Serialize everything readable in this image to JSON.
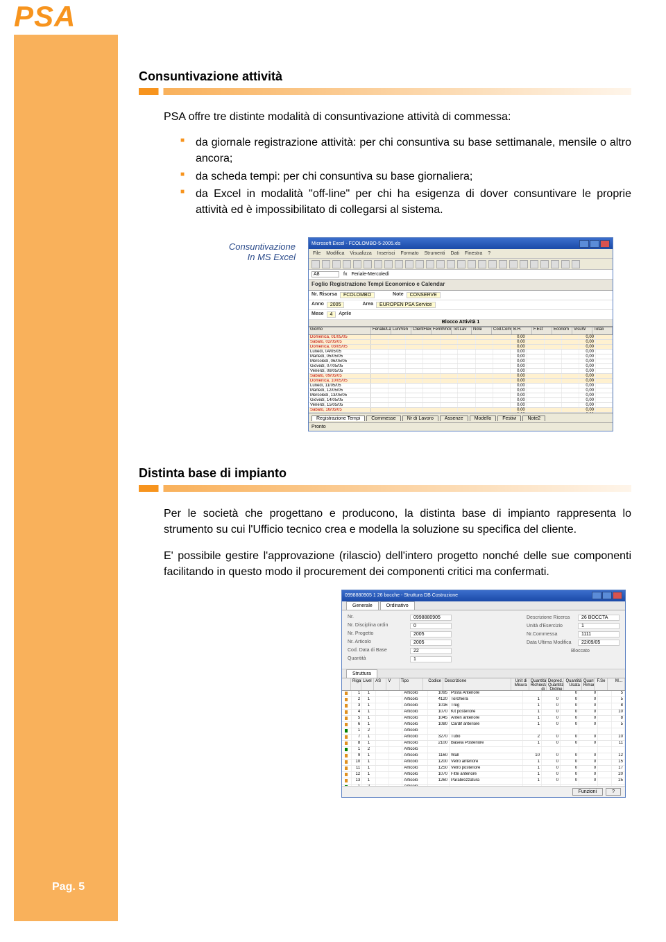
{
  "page_title": "PSA",
  "page_number": "Pag. 5",
  "colors": {
    "accent_orange": "#f7941e",
    "sidebar_orange": "#f9b15b",
    "caption_blue": "#2a4a8a",
    "win_title_gradient_top": "#3b6ecc",
    "win_title_gradient_bottom": "#1b4aa8"
  },
  "section1": {
    "heading": "Consuntivazione attività",
    "intro": "PSA offre tre distinte modalità di consuntivazione attività di commessa:",
    "bullets": [
      "da giornale registrazione attività: per chi consuntiva su base settimanale, mensile o altro ancora;",
      "da scheda tempi: per chi consuntiva su base giornaliera;",
      "da Excel in modalità \"off-line\" per chi ha esigenza di dover consuntivare le proprie attività ed è impossibilitato di collegarsi al sistema."
    ],
    "caption": "Consuntivazione\nIn MS Excel"
  },
  "excel": {
    "title": "Microsoft Excel - FCOLOMBO-5-2005.xls",
    "menu": [
      "File",
      "Modifica",
      "Visualizza",
      "Inserisci",
      "Formato",
      "Strumenti",
      "Dati",
      "Finestra",
      "?"
    ],
    "cell_ref": "A8",
    "formula": "Feriale-Mercoledì",
    "sheet_title": "Foglio Registrazione Tempi Economico e Calendar",
    "info": {
      "risorsa_label": "Nr. Risorsa",
      "risorsa_value": "FCOLOMBO",
      "anno_label": "Anno",
      "anno_value": "2005",
      "mese_label": "Mese",
      "mese_value": "4",
      "mese_name": "Aprile",
      "note_label": "Note",
      "note_value": "CONSERVE",
      "area_label": "Area",
      "area_value": "EUROPEN PSA Service"
    },
    "block_label": "Blocco Attività 1",
    "columns": [
      "Giorno",
      "Feriale/Lavorativo",
      "Lun/Ven",
      "ClientFlexibleProdCateg",
      "FeriW/noW",
      "Tot.Lav",
      "Note",
      "Cod.Comessa",
      "B.H.",
      "F.Est",
      "Econom",
      "VisuW",
      "Totali"
    ],
    "rows": [
      {
        "d": "Domenica, 01/05/05",
        "w": true
      },
      {
        "d": "Sabato, 02/05/05",
        "w": true
      },
      {
        "d": "Domenica, 03/05/05",
        "w": true
      },
      {
        "d": "Lunedì, 04/05/05",
        "w": false
      },
      {
        "d": "Martedì, 05/05/05",
        "w": false
      },
      {
        "d": "Mercoledì, 06/05/05",
        "w": false
      },
      {
        "d": "Giovedì, 07/05/05",
        "w": false
      },
      {
        "d": "Venerdì, 08/05/05",
        "w": false
      },
      {
        "d": "Sabato, 09/05/05",
        "w": true
      },
      {
        "d": "Domenica, 10/05/05",
        "w": true
      },
      {
        "d": "Lunedì, 11/05/05",
        "w": false
      },
      {
        "d": "Martedì, 12/05/05",
        "w": false
      },
      {
        "d": "Mercoledì, 13/05/05",
        "w": false
      },
      {
        "d": "Giovedì, 14/05/05",
        "w": false
      },
      {
        "d": "Venerdì, 15/05/05",
        "w": false
      },
      {
        "d": "Sabato, 16/05/05",
        "w": true
      },
      {
        "d": "Domenica, 17/05/05",
        "w": true
      },
      {
        "d": "Lunedì, 18/05/05",
        "w": false
      },
      {
        "d": "Martedì, 19/05/05",
        "w": false
      },
      {
        "d": "Mercoledì, 20/05/05",
        "w": false
      },
      {
        "d": "Giovedì, 21/05/05",
        "w": false
      },
      {
        "d": "Venerdì, 22/05/05",
        "w": false
      },
      {
        "d": "Sabato, 23/05/05",
        "w": true
      }
    ],
    "val_col": "0,00",
    "tabs": [
      "Registrazione Tempi",
      "Commesse",
      "Nr di Lavoro",
      "Assenze",
      "Modello",
      "Festivi",
      "Note2"
    ],
    "status": "Pronto"
  },
  "section2": {
    "heading": "Distinta base di impianto",
    "para1": "Per le società che progettano e producono, la distinta base di impianto rappresenta lo strumento su cui l'Ufficio tecnico crea e modella la soluzione su specifica del cliente.",
    "para2": "E' possibile gestire l'approvazione (rilascio) dell'intero progetto nonché delle sue componenti facilitando in questo modo il procurement dei componenti critici ma confermati."
  },
  "app": {
    "title": "0998880905 1  26 bocche - Struttura DB Costruzione",
    "header": {
      "generale": "Generale",
      "ordinamento": "Ordinativo",
      "nr_label": "Nr.",
      "nr_val": "0998880905",
      "desc_label": "Descrizione Ricerca",
      "desc_val": "26 BOCCTA",
      "disciplina_label": "Nr. Disciplina ordin",
      "disciplina_val": "0",
      "unita_label": "Unità d'Esercizio",
      "unita_val": "1",
      "progetto_label": "Nr. Progetto",
      "progetto_val": "2005",
      "icona_label": "Nr.Commessa",
      "icona_val": "1111",
      "articolo_label": "Nr. Articolo",
      "articolo_val": "2005",
      "data_label": "Data Ultima Modifica",
      "data_val": "22/09/05",
      "cat_label": "Cod. Data di Base",
      "cat_val": "22",
      "bloccato_label": "Bloccato",
      "quantita_label": "Quantità",
      "quantita_val": "1",
      "tab": "Struttura"
    },
    "thead": [
      "",
      "Riga",
      "Livel",
      "AS",
      "V",
      "Tipo",
      "Codice",
      "Descrizione",
      "Unit di Misura",
      "Quantità Richiesta di Articolo",
      "Depred. Quantità Ordine Area",
      "Quantità Usata",
      "Quantità Rimanet",
      "F.Se",
      "M…"
    ],
    "rows": [
      {
        "sq": "#e09020",
        "r": 1,
        "liv": 1,
        "tipo": "Articolo",
        "cod": "1095",
        "desc": "Posta Anteriore",
        "n1": "",
        "n2": "",
        "n3": "0",
        "n4": "0",
        "n5": "",
        "n6": "5"
      },
      {
        "sq": "#e09020",
        "r": 2,
        "liv": 1,
        "tipo": "Articolo",
        "cod": "4120",
        "desc": "Torchiera",
        "n1": "1",
        "n2": "0",
        "n3": "0",
        "n4": "0",
        "n5": "",
        "n6": "5"
      },
      {
        "sq": "#e09020",
        "r": 3,
        "liv": 1,
        "tipo": "Articolo",
        "cod": "1016",
        "desc": "Treg",
        "n1": "1",
        "n2": "0",
        "n3": "0",
        "n4": "0",
        "n5": "",
        "n6": "8"
      },
      {
        "sq": "#e09020",
        "r": 4,
        "liv": 1,
        "tipo": "Articolo",
        "cod": "1070",
        "desc": "Kit posteriore",
        "n1": "1",
        "n2": "0",
        "n3": "0",
        "n4": "0",
        "n5": "",
        "n6": "10"
      },
      {
        "sq": "#e09020",
        "r": 5,
        "liv": 1,
        "tipo": "Articolo",
        "cod": "1045",
        "desc": "Anten anteriore",
        "n1": "1",
        "n2": "0",
        "n3": "0",
        "n4": "0",
        "n5": "",
        "n6": "8"
      },
      {
        "sq": "#e09020",
        "r": 6,
        "liv": 1,
        "tipo": "Articolo",
        "cod": "1080",
        "desc": "Cardif anteriore",
        "n1": "1",
        "n2": "0",
        "n3": "0",
        "n4": "0",
        "n5": "",
        "n6": "5"
      },
      {
        "sq": "#008000",
        "r": 1,
        "liv": 2,
        "tipo": "Articolo",
        "cod": "",
        "desc": "",
        "n1": "",
        "n2": "",
        "n3": "",
        "n4": "",
        "n5": "",
        "n6": ""
      },
      {
        "sq": "#e09020",
        "r": 7,
        "liv": 1,
        "tipo": "Articolo",
        "cod": "3270",
        "desc": "Tubo",
        "n1": "2",
        "n2": "0",
        "n3": "0",
        "n4": "0",
        "n5": "",
        "n6": "10"
      },
      {
        "sq": "#e09020",
        "r": 8,
        "liv": 1,
        "tipo": "Articolo",
        "cod": "2100",
        "desc": "Basela Posteriore",
        "n1": "1",
        "n2": "0",
        "n3": "0",
        "n4": "0",
        "n5": "",
        "n6": "11"
      },
      {
        "sq": "#008000",
        "r": 1,
        "liv": 2,
        "tipo": "Articolo",
        "cod": "",
        "desc": "",
        "n1": "",
        "n2": "",
        "n3": "",
        "n4": "",
        "n5": "",
        "n6": ""
      },
      {
        "sq": "#e09020",
        "r": 9,
        "liv": 1,
        "tipo": "Articolo",
        "cod": "1160",
        "desc": "Wall",
        "n1": "10",
        "n2": "0",
        "n3": "0",
        "n4": "0",
        "n5": "",
        "n6": "12"
      },
      {
        "sq": "#e09020",
        "r": 10,
        "liv": 1,
        "tipo": "Articolo",
        "cod": "1200",
        "desc": "Vetro anteriore",
        "n1": "1",
        "n2": "0",
        "n3": "0",
        "n4": "0",
        "n5": "",
        "n6": "15"
      },
      {
        "sq": "#e09020",
        "r": 11,
        "liv": 1,
        "tipo": "Articolo",
        "cod": "1250",
        "desc": "Vetro posteriore",
        "n1": "1",
        "n2": "0",
        "n3": "0",
        "n4": "0",
        "n5": "",
        "n6": "17"
      },
      {
        "sq": "#e09020",
        "r": 12,
        "liv": 1,
        "tipo": "Articolo",
        "cod": "1070",
        "desc": "Fitte anteriore",
        "n1": "1",
        "n2": "0",
        "n3": "0",
        "n4": "0",
        "n5": "",
        "n6": "20"
      },
      {
        "sq": "#e09020",
        "r": 13,
        "liv": 1,
        "tipo": "Articolo",
        "cod": "1260",
        "desc": "Parabrezzatura",
        "n1": "1",
        "n2": "0",
        "n3": "0",
        "n4": "0",
        "n5": "",
        "n6": "25"
      },
      {
        "sq": "#008000",
        "r": 1,
        "liv": 2,
        "tipo": "Articolo",
        "cod": "",
        "desc": "",
        "n1": "",
        "n2": "",
        "n3": "",
        "n4": "",
        "n5": "",
        "n6": ""
      },
      {
        "sq": "#e09020",
        "r": 14,
        "liv": 1,
        "tipo": "Articolo",
        "cod": "3090",
        "desc": "Nome Notituzi",
        "n1": "3",
        "n2": "0",
        "n3": "0",
        "n4": "0",
        "n5": "",
        "n6": "30"
      },
      {
        "sq": "#e09020",
        "r": 15,
        "liv": 1,
        "tipo": "Articolo",
        "cod": "1300",
        "desc": "Catena",
        "n1": "1",
        "n2": "0",
        "n3": "0",
        "n4": "0",
        "n5": "",
        "n6": "35"
      },
      {
        "sq": "#e09020",
        "r": 16,
        "liv": 1,
        "tipo": "Articolo",
        "cod": "1500",
        "desc": "Catena Posteriori",
        "n1": "1",
        "n2": "0",
        "n3": "0",
        "n4": "0",
        "n5": "",
        "n6": "40"
      },
      {
        "sq": "#e09020",
        "r": 17,
        "liv": 1,
        "tipo": "Articolo",
        "cod": "1340",
        "desc": "Lettore/Tramisteri",
        "n1": "1",
        "n2": "0",
        "n3": "0",
        "n4": "0",
        "n5": "",
        "n6": "10"
      },
      {
        "sq": "#e09020",
        "r": 18,
        "liv": 1,
        "tipo": "Articolo",
        "cod": "1400",
        "desc": "Bracciaia Librario",
        "n1": "2",
        "n2": "0",
        "n3": "0",
        "n4": "0",
        "n5": "",
        "n6": "5"
      },
      {
        "sq": "#e09020",
        "r": 19,
        "liv": 1,
        "tipo": "Articolo",
        "cod": "2480",
        "desc": "Pedale anteriore",
        "n1": "4",
        "n2": "0",
        "n3": "0",
        "n4": "0",
        "n5": "",
        "n6": "5"
      },
      {
        "sq": "#e09020",
        "r": 20,
        "liv": 1,
        "tipo": "Articolo",
        "cod": "2800",
        "desc": "Lampada",
        "n1": "1",
        "n2": "0",
        "n3": "0",
        "n4": "0",
        "n5": "",
        "n6": "5"
      },
      {
        "sq": "#008000",
        "r": 1,
        "liv": 2,
        "tipo": "Articolo",
        "cod": "",
        "desc": "",
        "n1": "",
        "n2": "",
        "n3": "",
        "n4": "",
        "n5": "",
        "n6": ""
      },
      {
        "sq": "#e09020",
        "r": 21,
        "liv": 1,
        "tipo": "Articolo",
        "cod": "2960",
        "desc": "Pneum",
        "n1": "2",
        "n2": "0",
        "n3": "0",
        "n4": "0",
        "n5": "",
        "n6": "5"
      },
      {
        "sq": "#e09020",
        "r": 22,
        "liv": 1,
        "tipo": "Articolo",
        "cod": "1940",
        "desc": "Frenos",
        "n1": "2",
        "n2": "0",
        "n3": "0",
        "n4": "0",
        "n5": "",
        "n6": "5"
      },
      {
        "sq": "#008000",
        "r": 1,
        "liv": 2,
        "tipo": "Articolo",
        "cod": "",
        "desc": "",
        "n1": "",
        "n2": "",
        "n3": "",
        "n4": "",
        "n5": "",
        "n6": ""
      },
      {
        "sq": "#e09020",
        "r": 23,
        "liv": 1,
        "tipo": "Articolo",
        "cod": "3080",
        "desc": "Manubri",
        "n1": "1",
        "n2": "0",
        "n3": "0",
        "n4": "0",
        "n5": "",
        "n6": "5"
      },
      {
        "sq": "#e09020",
        "r": 24,
        "liv": 1,
        "tipo": "Articolo",
        "cod": "2060",
        "desc": "Sella",
        "n1": "1",
        "n2": "0",
        "n3": "0",
        "n4": "0",
        "n5": "",
        "n6": "5"
      },
      {
        "sq": "#e09020",
        "r": 25,
        "liv": 1,
        "tipo": "Articolo",
        "cod": "1960",
        "desc": "Telaio",
        "n1": "1",
        "n2": "0",
        "n3": "0",
        "n4": "0",
        "n5": "",
        "n6": "5"
      }
    ],
    "footer_btn1": "Funzioni",
    "footer_btn2": "?"
  }
}
